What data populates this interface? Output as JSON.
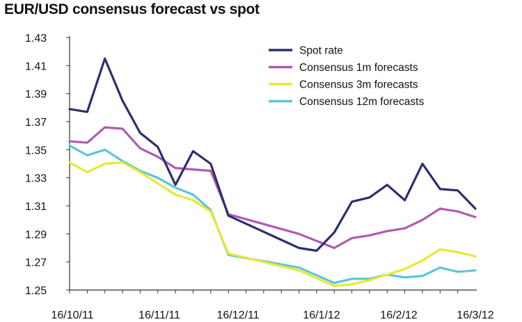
{
  "chart_data": {
    "type": "line",
    "title": "EUR/USD consensus forecast vs spot",
    "xlabel": "",
    "ylabel": "",
    "ylim": [
      1.25,
      1.43
    ],
    "yticks": [
      "1.43",
      "1.41",
      "1.39",
      "1.37",
      "1.35",
      "1.33",
      "1.31",
      "1.29",
      "1.27",
      "1.25"
    ],
    "xtick_labels": [
      "16/10/11",
      "16/11/11",
      "16/12/11",
      "16/1/12",
      "16/2/12",
      "16/3/12"
    ],
    "x": [
      "16/10/11",
      "23/10/11",
      "30/10/11",
      "6/11/11",
      "13/11/11",
      "20/11/11",
      "27/11/11",
      "4/12/11",
      "11/12/11",
      "18/12/11",
      "25/12/11",
      "1/1/12",
      "8/1/12",
      "15/1/12",
      "22/1/12",
      "29/1/12",
      "5/2/12",
      "12/2/12",
      "19/2/12",
      "26/2/12",
      "4/3/12",
      "11/3/12",
      "18/3/12"
    ],
    "grid": false,
    "legend_position": "top-right",
    "series": [
      {
        "name": "Spot rate",
        "color": "#2b2f6e",
        "points": [
          [
            0,
            1.379
          ],
          [
            2,
            1.377
          ],
          [
            4,
            1.415
          ],
          [
            6,
            1.385
          ],
          [
            8,
            1.362
          ],
          [
            10,
            1.352
          ],
          [
            12,
            1.325
          ],
          [
            14,
            1.349
          ],
          [
            16,
            1.34
          ],
          [
            18,
            1.303
          ],
          [
            26,
            1.28
          ],
          [
            28,
            1.278
          ],
          [
            30,
            1.291
          ],
          [
            32,
            1.313
          ],
          [
            34,
            1.316
          ],
          [
            36,
            1.325
          ],
          [
            38,
            1.314
          ],
          [
            40,
            1.34
          ],
          [
            42,
            1.322
          ],
          [
            44,
            1.321
          ],
          [
            46,
            1.308
          ]
        ]
      },
      {
        "name": "Consensus 1m forecasts",
        "color": "#b05ab0",
        "points": [
          [
            0,
            1.356
          ],
          [
            2,
            1.355
          ],
          [
            4,
            1.366
          ],
          [
            6,
            1.365
          ],
          [
            8,
            1.351
          ],
          [
            10,
            1.345
          ],
          [
            12,
            1.337
          ],
          [
            14,
            1.336
          ],
          [
            16,
            1.335
          ],
          [
            18,
            1.304
          ],
          [
            26,
            1.29
          ],
          [
            30,
            1.28
          ],
          [
            32,
            1.287
          ],
          [
            34,
            1.289
          ],
          [
            36,
            1.292
          ],
          [
            38,
            1.294
          ],
          [
            40,
            1.3
          ],
          [
            42,
            1.308
          ],
          [
            44,
            1.306
          ],
          [
            46,
            1.302
          ]
        ]
      },
      {
        "name": "Consensus 3m forecasts",
        "color": "#e8e832",
        "points": [
          [
            0,
            1.341
          ],
          [
            2,
            1.334
          ],
          [
            4,
            1.34
          ],
          [
            6,
            1.341
          ],
          [
            8,
            1.334
          ],
          [
            10,
            1.326
          ],
          [
            12,
            1.318
          ],
          [
            14,
            1.314
          ],
          [
            16,
            1.306
          ],
          [
            18,
            1.276
          ],
          [
            26,
            1.264
          ],
          [
            30,
            1.253
          ],
          [
            32,
            1.254
          ],
          [
            34,
            1.257
          ],
          [
            36,
            1.261
          ],
          [
            38,
            1.265
          ],
          [
            40,
            1.271
          ],
          [
            42,
            1.279
          ],
          [
            44,
            1.277
          ],
          [
            46,
            1.274
          ]
        ]
      },
      {
        "name": "Consensus 12m forecasts",
        "color": "#5bc6d6",
        "points": [
          [
            0,
            1.353
          ],
          [
            2,
            1.346
          ],
          [
            4,
            1.35
          ],
          [
            6,
            1.342
          ],
          [
            8,
            1.335
          ],
          [
            10,
            1.33
          ],
          [
            12,
            1.323
          ],
          [
            14,
            1.318
          ],
          [
            16,
            1.307
          ],
          [
            18,
            1.275
          ],
          [
            26,
            1.266
          ],
          [
            30,
            1.255
          ],
          [
            32,
            1.258
          ],
          [
            34,
            1.258
          ],
          [
            36,
            1.261
          ],
          [
            38,
            1.259
          ],
          [
            40,
            1.26
          ],
          [
            42,
            1.266
          ],
          [
            44,
            1.263
          ],
          [
            46,
            1.264
          ]
        ]
      }
    ]
  }
}
